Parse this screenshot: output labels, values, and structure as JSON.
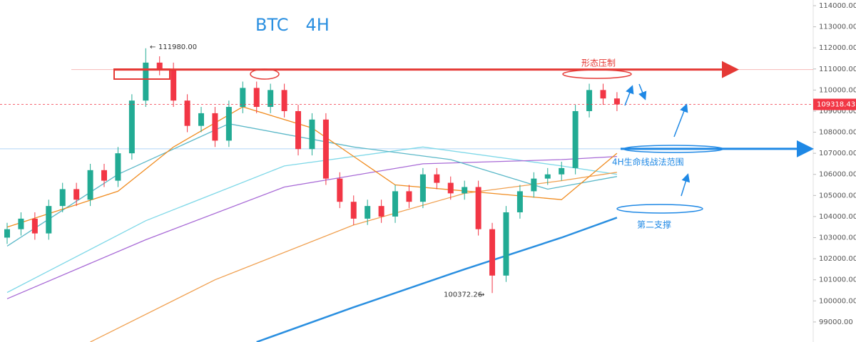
{
  "chart_data": {
    "type": "candlestick",
    "title": "BTC　4H",
    "up_color": "#22ab94",
    "down_color": "#f23645",
    "ylim": [
      98050,
      114270
    ],
    "yticks": [
      {
        "value": 99000,
        "label": "99000.00"
      },
      {
        "value": 100000,
        "label": "100000.00"
      },
      {
        "value": 101000,
        "label": "101000.00"
      },
      {
        "value": 102000,
        "label": "102000.00"
      },
      {
        "value": 103000,
        "label": "103000.00"
      },
      {
        "value": 104000,
        "label": "104000.00"
      },
      {
        "value": 105000,
        "label": "105000.00"
      },
      {
        "value": 106000,
        "label": "106000.00"
      },
      {
        "value": 107000,
        "label": "107000.00"
      },
      {
        "value": 108000,
        "label": "108000.00"
      },
      {
        "value": 109000,
        "label": "109000.00"
      },
      {
        "value": 110000,
        "label": "110000.00"
      },
      {
        "value": 111000,
        "label": "111000.00"
      },
      {
        "value": 112000,
        "label": "112000.00"
      },
      {
        "value": 113000,
        "label": "113000.00"
      },
      {
        "value": 114000,
        "label": "114000.00"
      }
    ],
    "open": [
      103000,
      103400,
      103900,
      103200,
      104500,
      105300,
      104800,
      106200,
      105700,
      107000,
      109500,
      111300,
      111000,
      109500,
      108300,
      108900,
      107600,
      109200,
      110100,
      109200,
      110000,
      109000,
      107200,
      108600,
      105800,
      104700,
      103900,
      104500,
      104000,
      105200,
      104700,
      106000,
      105600,
      105100,
      105400,
      103400,
      101200,
      104200,
      105200,
      105800,
      106000,
      106300,
      109000,
      110000,
      109600
    ],
    "close": [
      103400,
      103900,
      103200,
      104500,
      105300,
      104800,
      106200,
      105700,
      107000,
      109500,
      111300,
      111000,
      109500,
      108300,
      108900,
      107600,
      109200,
      110100,
      109200,
      110000,
      109000,
      107200,
      108600,
      105800,
      104700,
      103900,
      104500,
      104000,
      105200,
      104700,
      106000,
      105600,
      105100,
      105400,
      103400,
      101200,
      104200,
      105200,
      105800,
      106000,
      106300,
      109000,
      110000,
      109600,
      109318.43
    ],
    "high": [
      103700,
      104200,
      104200,
      104800,
      105600,
      105600,
      106500,
      106500,
      107300,
      109800,
      111980,
      111600,
      111300,
      109800,
      109200,
      109200,
      109500,
      110400,
      110400,
      110300,
      110300,
      109300,
      108900,
      108900,
      106100,
      105000,
      104800,
      104800,
      105500,
      105500,
      106300,
      106300,
      105900,
      105700,
      105700,
      103700,
      104500,
      105500,
      106100,
      106300,
      106600,
      109300,
      110300,
      110300,
      109900
    ],
    "low": [
      102700,
      103100,
      102900,
      102900,
      104200,
      104500,
      104500,
      105400,
      105400,
      106700,
      109200,
      110700,
      109200,
      108000,
      108000,
      107300,
      107300,
      108900,
      108900,
      108900,
      108700,
      106900,
      106900,
      105500,
      104400,
      103600,
      103600,
      103700,
      103700,
      104400,
      104400,
      105300,
      104800,
      104800,
      103100,
      100372.26,
      100900,
      103900,
      104900,
      105500,
      105700,
      106000,
      108700,
      109300,
      109000
    ],
    "series": [
      {
        "name": "MA-cyan",
        "color": "#7fd8e8",
        "x": [
          0,
          10,
          20,
          30,
          40,
          44
        ],
        "values": [
          100400,
          103800,
          106400,
          107300,
          106400,
          106000
        ]
      },
      {
        "name": "MA-purple",
        "color": "#a86ad6",
        "x": [
          0,
          10,
          20,
          30,
          40,
          44
        ],
        "values": [
          100100,
          102900,
          105400,
          106500,
          106700,
          106850
        ]
      },
      {
        "name": "MA-orange-long",
        "color": "#f0a050",
        "x": [
          6,
          15,
          25,
          33,
          40,
          44
        ],
        "values": [
          98050,
          101000,
          103600,
          105100,
          105700,
          106100
        ]
      },
      {
        "name": "MA-blue",
        "color": "#2a8fe0",
        "x": [
          18,
          25,
          33,
          40,
          44
        ],
        "values": [
          98050,
          99700,
          101500,
          103000,
          103950
        ]
      },
      {
        "name": "MA-teal",
        "color": "#5bb8c8",
        "x": [
          0,
          8,
          16,
          25,
          32,
          39,
          44
        ],
        "values": [
          102600,
          106000,
          108400,
          107300,
          106700,
          105300,
          105900
        ]
      },
      {
        "name": "MA-orange",
        "color": "#f08c20",
        "x": [
          0,
          8,
          12,
          17,
          22,
          28,
          35,
          40,
          44
        ],
        "values": [
          103500,
          105200,
          107300,
          109200,
          108200,
          105500,
          105100,
          104800,
          107000
        ]
      }
    ],
    "levels": [
      {
        "value": 110970,
        "color": "#e53935"
      },
      {
        "value": 107210,
        "color": "#1e88e5"
      }
    ],
    "last_price": 109318.43,
    "extremes": [
      {
        "value": 111980,
        "label": "111980.00"
      },
      {
        "value": 100372.26,
        "label": "100372.26"
      }
    ],
    "annotations": [
      "形态压制",
      "4H生命线战法范围",
      "第二支撑"
    ]
  }
}
